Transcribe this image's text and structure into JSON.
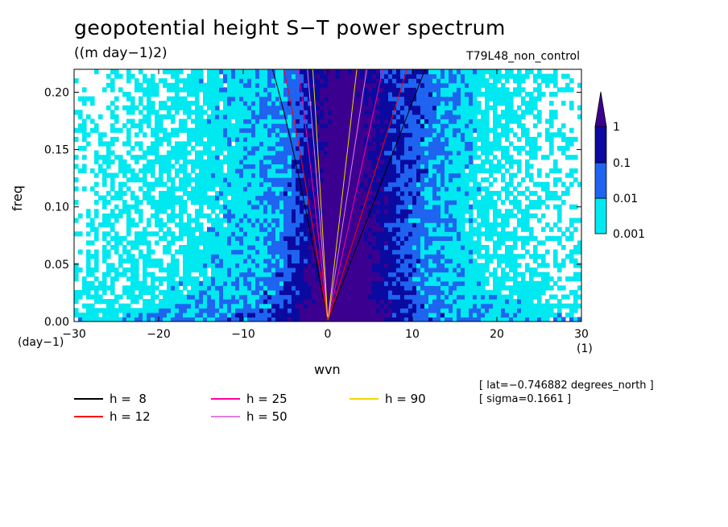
{
  "title": "geopotential height S−T power spectrum",
  "units": "((m day−1)2)",
  "run_label": "T79L48_non_control",
  "info": {
    "lat": "[ lat=−0.746882 degrees_north ]",
    "sigma": "[ sigma=0.1661 ]"
  },
  "chart_data": {
    "type": "heatmap",
    "xlabel": "wvn",
    "ylabel": "freq",
    "x_unit": "(1)",
    "y_unit": "(day−1)",
    "xlim": [
      -30,
      30
    ],
    "ylim": [
      0,
      0.22
    ],
    "x_ticks": [
      -30,
      -20,
      -10,
      0,
      10,
      20,
      30
    ],
    "x_tick_labels": [
      "−30",
      "−20",
      "−10",
      "0",
      "10",
      "20",
      "30"
    ],
    "y_ticks": [
      0,
      0.05,
      0.1,
      0.15,
      0.2
    ],
    "y_tick_labels": [
      "0.00",
      "0.05",
      "0.10",
      "0.15",
      "0.20"
    ],
    "contour_levels": [
      0.001,
      0.01,
      0.1,
      1
    ],
    "colorbar_labels": [
      "0.001",
      "0.01",
      "0.1",
      "1"
    ],
    "colors": {
      "lt_0.001": "#ffffff",
      "0.001_0.01": "#00e8f0",
      "0.01_0.1": "#1e64f0",
      "0.1_1": "#0a0aa0",
      "gt_1": "#3c0090"
    },
    "dispersion_curves": [
      {
        "h": 8,
        "label": "h =  8",
        "color": "#000000"
      },
      {
        "h": 12,
        "label": "h = 12",
        "color": "#ff0000"
      },
      {
        "h": 25,
        "label": "h = 25",
        "color": "#ff00a0"
      },
      {
        "h": 50,
        "label": "h = 50",
        "color": "#e080e0"
      },
      {
        "h": 90,
        "label": "h = 90",
        "color": "#f0d800"
      }
    ]
  }
}
